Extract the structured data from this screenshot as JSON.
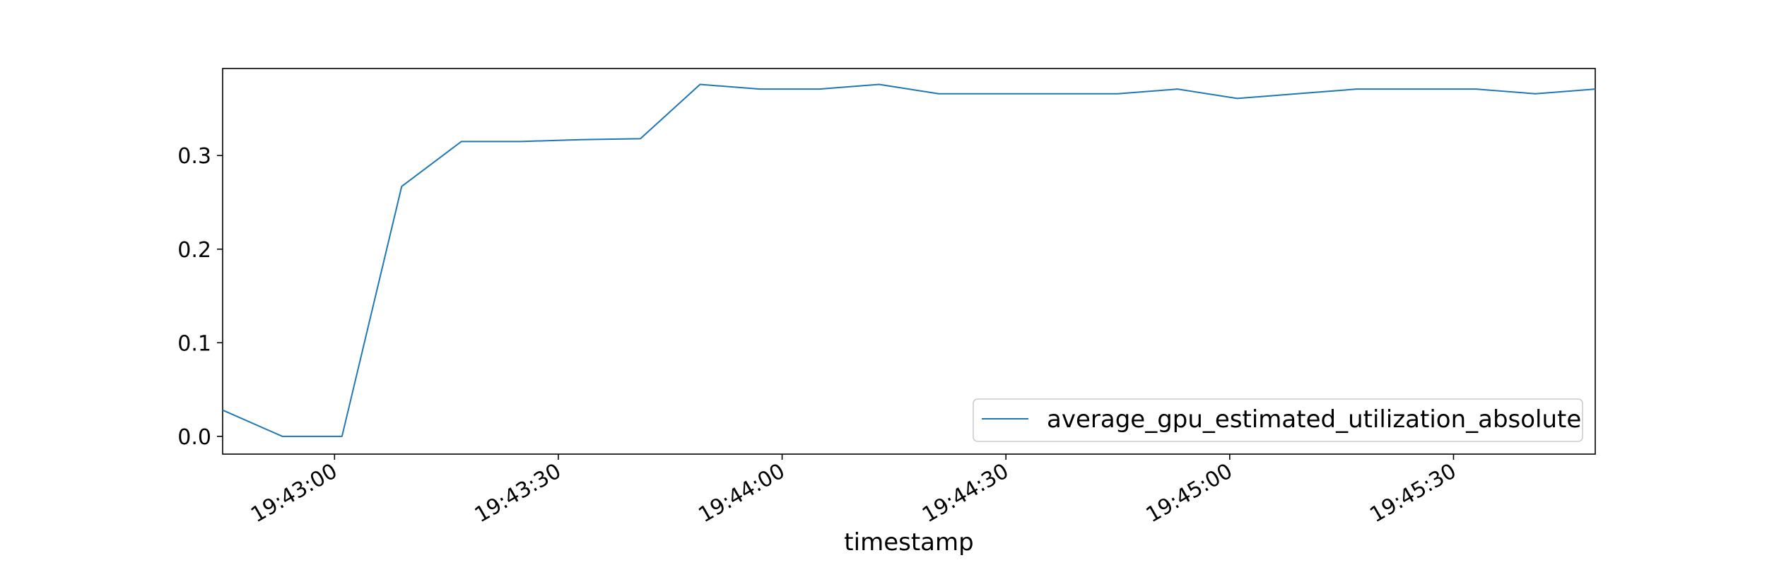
{
  "chart_data": {
    "type": "line",
    "xlabel": "timestamp",
    "ylabel": "",
    "x_ticks": [
      "19:43:00",
      "19:43:30",
      "19:44:00",
      "19:44:30",
      "19:45:00",
      "19:45:30"
    ],
    "y_ticks": [
      "0.0",
      "0.1",
      "0.2",
      "0.3"
    ],
    "ylim": [
      -0.019,
      0.393
    ],
    "xlim": [
      "19:42:45",
      "19:45:49"
    ],
    "grid": false,
    "legend_position": "bottom-right",
    "line_color": "#1f77b4",
    "series": [
      {
        "name": "average_gpu_estimated_utilization_absolute",
        "x": [
          "19:42:45",
          "19:42:53",
          "19:43:01",
          "19:43:09",
          "19:43:17",
          "19:43:25",
          "19:43:33",
          "19:43:41",
          "19:43:49",
          "19:43:57",
          "19:44:05",
          "19:44:13",
          "19:44:21",
          "19:44:29",
          "19:44:37",
          "19:44:45",
          "19:44:53",
          "19:45:01",
          "19:45:09",
          "19:45:17",
          "19:45:25",
          "19:45:33",
          "19:45:41",
          "19:45:49"
        ],
        "values": [
          0.028,
          0.0,
          0.0,
          0.267,
          0.315,
          0.315,
          0.317,
          0.318,
          0.376,
          0.371,
          0.371,
          0.376,
          0.366,
          0.366,
          0.366,
          0.366,
          0.371,
          0.361,
          0.366,
          0.371,
          0.371,
          0.371,
          0.366,
          0.371
        ]
      }
    ]
  }
}
